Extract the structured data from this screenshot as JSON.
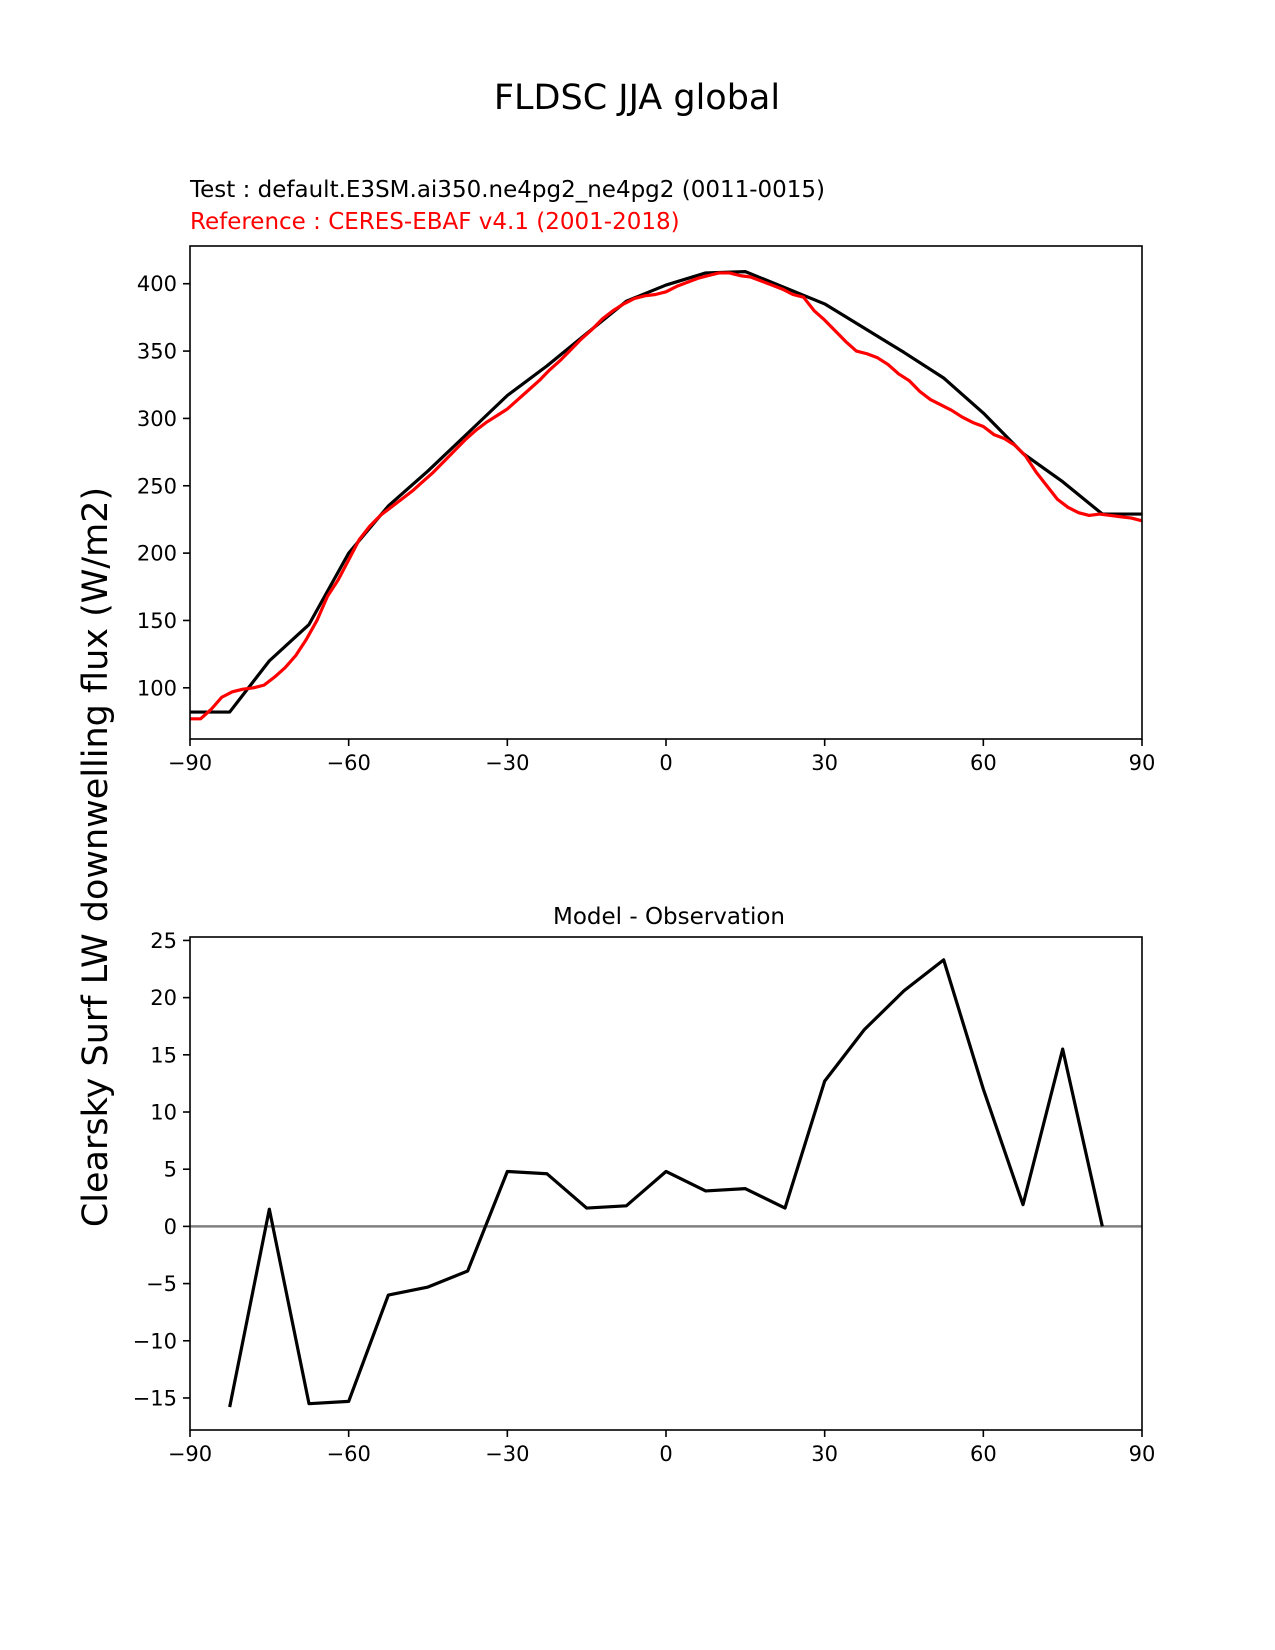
{
  "figure": {
    "title": "FLDSC JJA global",
    "ylabel": "Clearsky Surf LW downwelling flux (W/m2)"
  },
  "chart_data": [
    {
      "type": "line",
      "test_label": "Test : default.E3SM.ai350.ne4pg2_ne4pg2 (0011-0015)",
      "reference_label": "Reference : CERES-EBAF v4.1 (2001-2018)",
      "xlim": [
        -90,
        90
      ],
      "ylim": [
        62,
        428
      ],
      "xticks": [
        -90,
        -60,
        -30,
        0,
        30,
        60,
        90
      ],
      "yticks": [
        100,
        150,
        200,
        250,
        300,
        350,
        400
      ],
      "grid": false,
      "series": [
        {
          "color": "#000000",
          "x": [
            -90,
            -82.5,
            -75,
            -67.5,
            -60,
            -52.5,
            -45,
            -37.5,
            -30,
            -22.5,
            -15,
            -7.5,
            0,
            7.5,
            15,
            22.5,
            30,
            37.5,
            45,
            52.5,
            60,
            67.5,
            75,
            82.5,
            90
          ],
          "y": [
            82,
            82,
            120,
            147,
            200,
            235,
            261,
            289,
            317,
            339,
            363,
            387,
            399,
            408,
            409,
            397,
            385,
            367,
            349,
            330,
            304,
            274,
            253,
            229,
            229
          ]
        },
        {
          "color": "#ff0000",
          "x": [
            -90,
            -88,
            -86,
            -84,
            -82,
            -80,
            -78,
            -76,
            -74,
            -72,
            -70,
            -68,
            -66,
            -64,
            -62,
            -60,
            -58,
            -56,
            -54,
            -52,
            -50,
            -48,
            -46,
            -44,
            -42,
            -40,
            -38,
            -36,
            -34,
            -32,
            -30,
            -28,
            -26,
            -24,
            -22,
            -20,
            -18,
            -16,
            -14,
            -12,
            -10,
            -8,
            -6,
            -4,
            -2,
            0,
            2,
            4,
            6,
            8,
            10,
            12,
            14,
            16,
            18,
            20,
            22,
            24,
            26,
            28,
            30,
            32,
            34,
            36,
            38,
            40,
            42,
            44,
            46,
            48,
            50,
            52,
            54,
            56,
            58,
            60,
            62,
            64,
            66,
            68,
            70,
            72,
            74,
            76,
            78,
            80,
            82,
            84,
            86,
            88,
            90
          ],
          "y": [
            77,
            77,
            84,
            93,
            97,
            99,
            100,
            102,
            108,
            115,
            124,
            136,
            150,
            168,
            180,
            195,
            210,
            220,
            228,
            234,
            240,
            246,
            253,
            260,
            268,
            276,
            284,
            291,
            297,
            302,
            307,
            314,
            321,
            328,
            336,
            343,
            351,
            359,
            366,
            374,
            380,
            385,
            389,
            391,
            392,
            394,
            398,
            401,
            404,
            406,
            408,
            408,
            406,
            405,
            402,
            399,
            396,
            392,
            390,
            380,
            373,
            365,
            357,
            350,
            348,
            345,
            340,
            333,
            328,
            320,
            314,
            310,
            306,
            301,
            297,
            294,
            288,
            285,
            280,
            272,
            260,
            250,
            240,
            234,
            230,
            228,
            229,
            228,
            227,
            226,
            224
          ]
        }
      ]
    },
    {
      "type": "line",
      "title": "Model - Observation",
      "xlim": [
        -90,
        90
      ],
      "ylim": [
        -17.8,
        25.3
      ],
      "xticks": [
        -90,
        -60,
        -30,
        0,
        30,
        60,
        90
      ],
      "yticks": [
        -15,
        -10,
        -5,
        0,
        5,
        10,
        15,
        20,
        25
      ],
      "grid": false,
      "zero_line_color": "#808080",
      "series": [
        {
          "color": "#000000",
          "x": [
            -82.5,
            -75,
            -67.5,
            -60,
            -52.5,
            -45,
            -37.5,
            -30,
            -22.5,
            -15,
            -7.5,
            0,
            7.5,
            15,
            22.5,
            30,
            37.5,
            45,
            52.5,
            60,
            67.5,
            75,
            82.5
          ],
          "y": [
            -15.8,
            1.5,
            -15.5,
            -15.3,
            -6,
            -5.3,
            -3.9,
            4.8,
            4.6,
            1.6,
            1.8,
            4.8,
            3.1,
            3.3,
            1.6,
            12.7,
            17.2,
            20.6,
            23.3,
            12,
            1.9,
            15.5,
            0
          ]
        }
      ]
    }
  ]
}
